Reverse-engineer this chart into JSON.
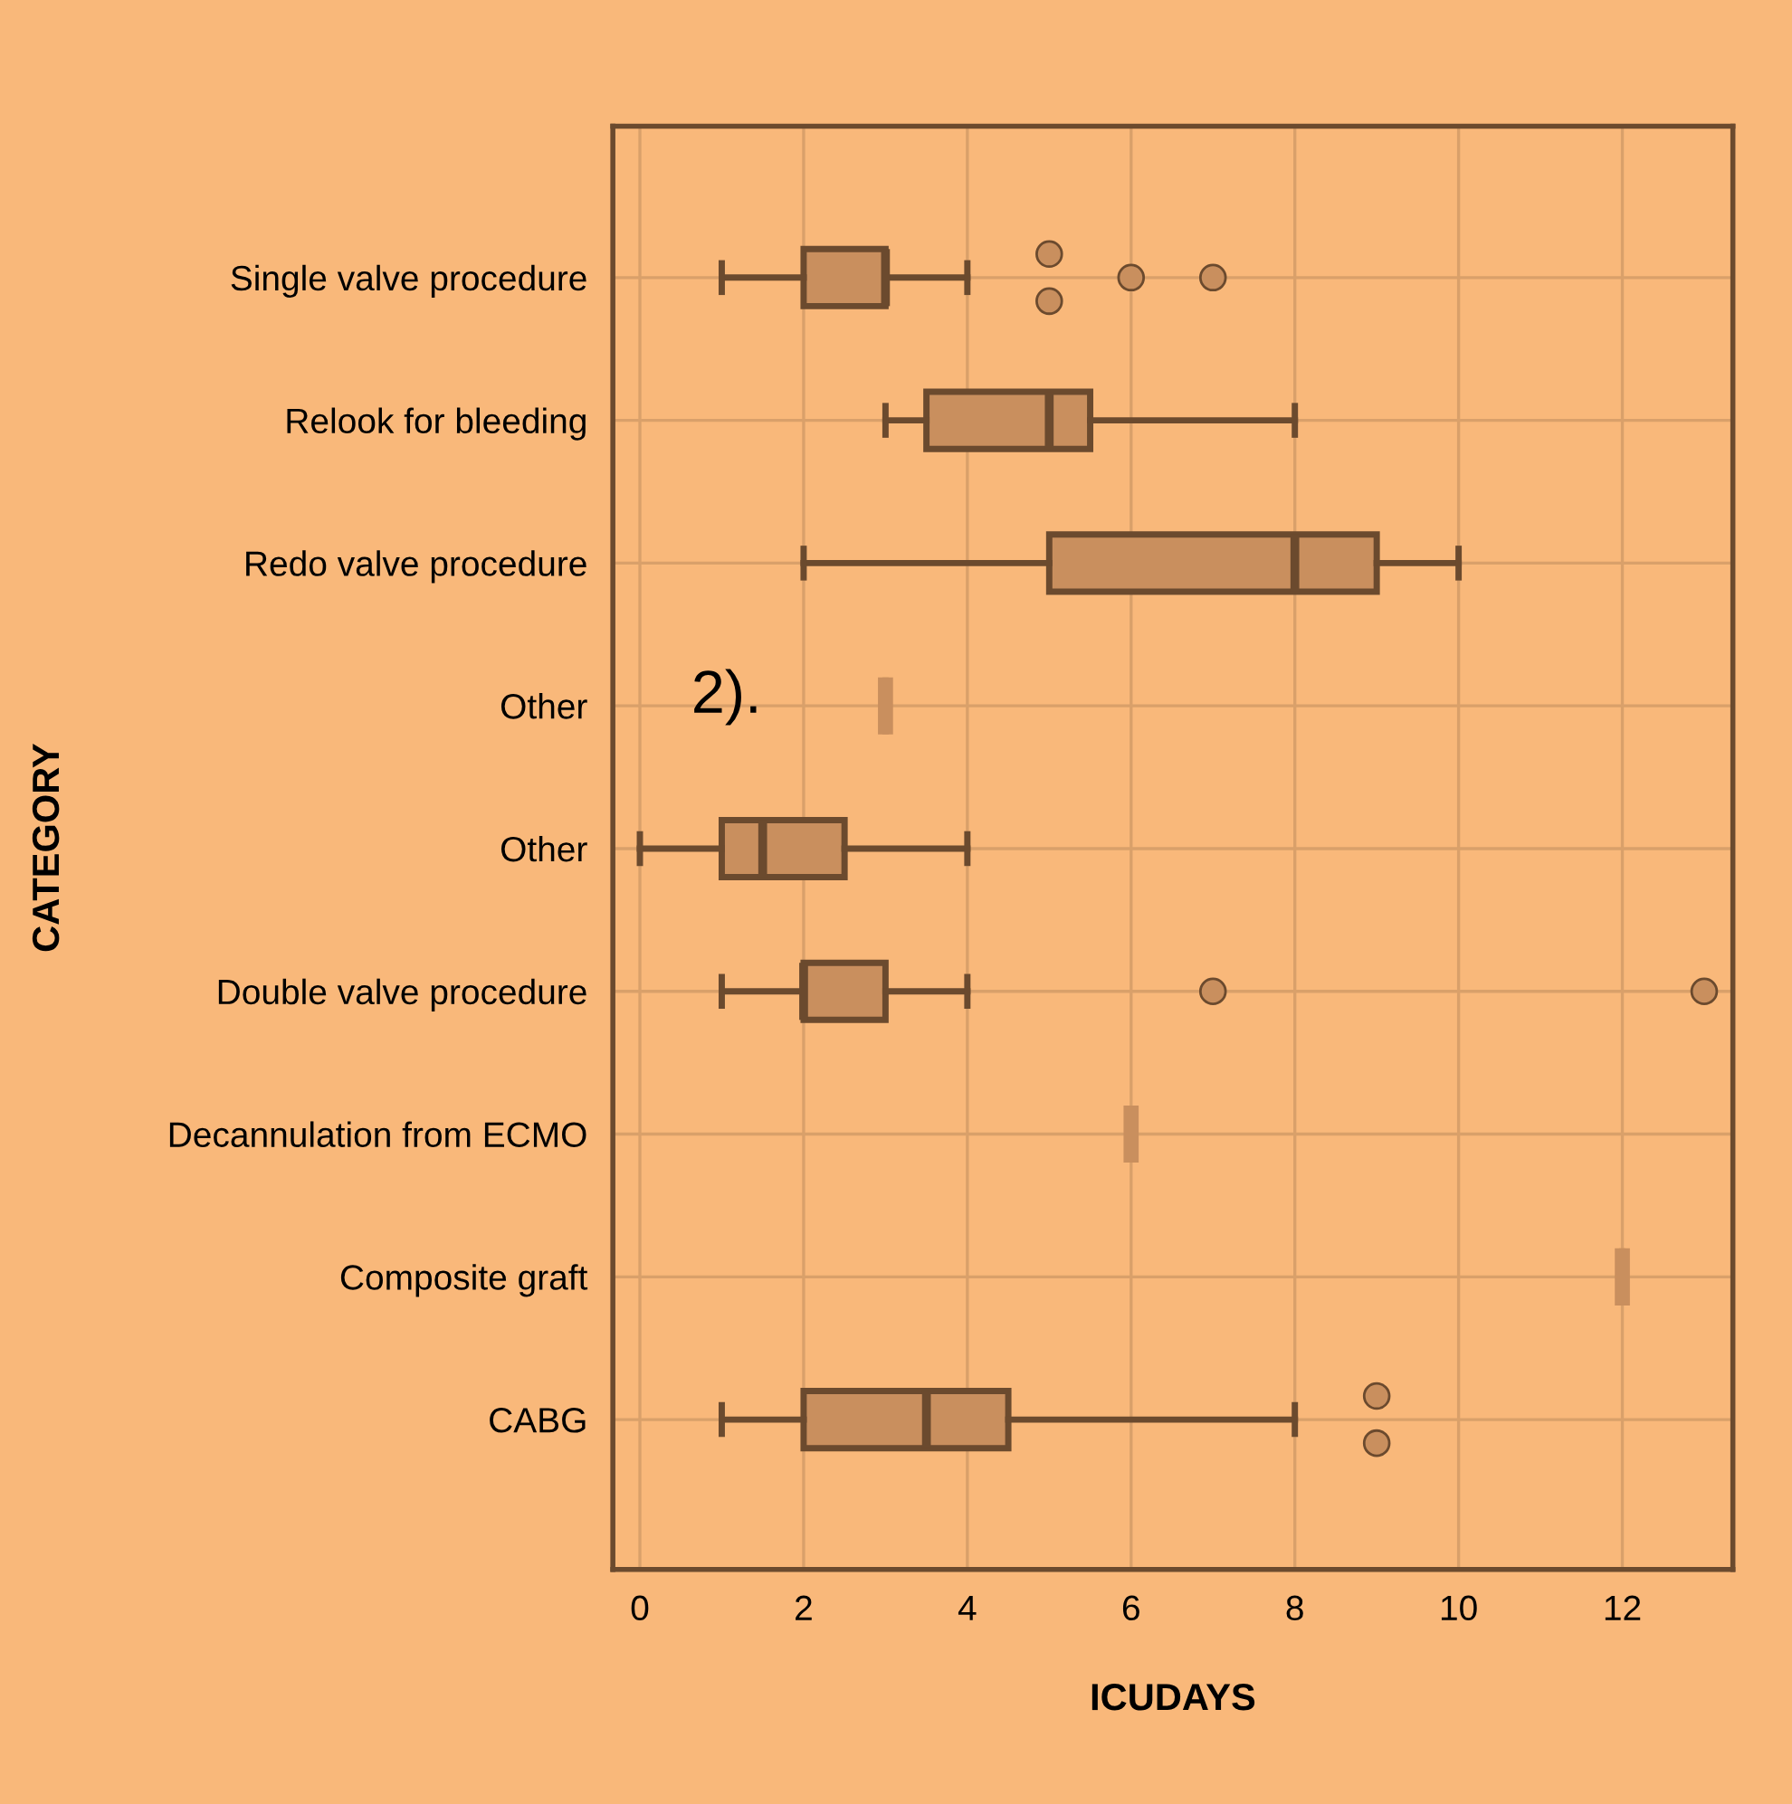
{
  "chart_data": {
    "type": "box",
    "orientation": "horizontal",
    "xlabel": "ICUDAYS",
    "ylabel": "CATEGORY",
    "categories": [
      "Single valve procedure",
      "Relook for bleeding",
      "Redo valve procedure",
      "Other",
      "Other",
      "Double valve procedure",
      "Decannulation from ECMO",
      "Composite graft",
      "CABG"
    ],
    "boxes": [
      {
        "low": 1,
        "q1": 2,
        "median": 3,
        "q3": 3,
        "high": 4,
        "outliers": [
          5,
          5,
          6,
          7
        ]
      },
      {
        "low": 3,
        "q1": 3.5,
        "median": 5,
        "q3": 5.5,
        "high": 8
      },
      {
        "low": 2,
        "q1": 5,
        "median": 8,
        "q3": 9,
        "high": 10
      },
      {
        "low": 3,
        "q1": 3,
        "median": 3,
        "q3": 3,
        "high": 3
      },
      {
        "low": 0,
        "q1": 1,
        "median": 1.5,
        "q3": 2.5,
        "high": 4
      },
      {
        "low": 1,
        "q1": 2,
        "median": 2,
        "q3": 3,
        "high": 4,
        "outliers": [
          7,
          13
        ]
      },
      {
        "low": 6,
        "q1": 6,
        "median": 6,
        "q3": 6,
        "high": 6
      },
      {
        "low": 12,
        "q1": 12,
        "median": 12,
        "q3": 12,
        "high": 12
      },
      {
        "low": 1,
        "q1": 2,
        "median": 3.5,
        "q3": 4.5,
        "high": 8,
        "outliers": [
          9,
          9
        ]
      }
    ],
    "color": "#c98f5e",
    "xlim": [
      -0.33,
      13.35
    ],
    "xticks": [
      0,
      2,
      4,
      6,
      8,
      10,
      12
    ],
    "grid": true,
    "annotations": [
      "2)."
    ]
  }
}
